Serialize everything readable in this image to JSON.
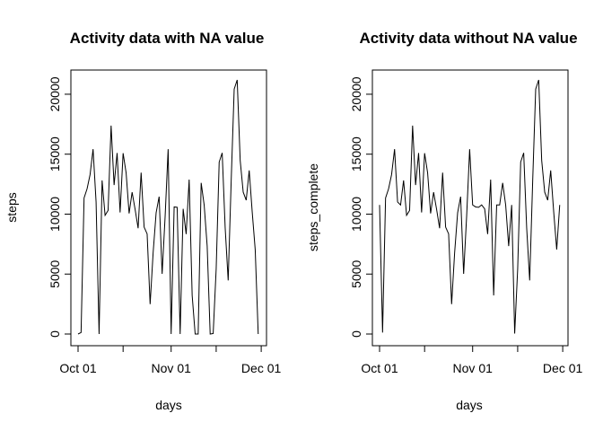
{
  "chart_data": [
    {
      "type": "line",
      "title": "Activity data with NA value",
      "xlabel": "days",
      "ylabel": "steps",
      "x_tick_labels": [
        "Oct 01",
        "Nov 01",
        "Dec 01"
      ],
      "y_tick_labels": [
        "0",
        "5000",
        "10000",
        "15000",
        "20000"
      ],
      "y_ticks": [
        0,
        5000,
        10000,
        15000,
        20000
      ],
      "ylim": [
        0,
        21194
      ],
      "grid": false,
      "series": [
        {
          "values": [
            0,
            126,
            11352,
            12116,
            13294,
            15420,
            11015,
            0,
            12811,
            9900,
            10304,
            17382,
            12426,
            15098,
            10139,
            15084,
            13452,
            10056,
            11829,
            10395,
            8821,
            13460,
            8918,
            8355,
            2492,
            6778,
            10119,
            11458,
            5018,
            9819,
            15414,
            0,
            10600,
            10571,
            0,
            10439,
            8334,
            12883,
            3219,
            0,
            0,
            12608,
            10765,
            7336,
            0,
            41,
            5441,
            14339,
            15110,
            8841,
            4472,
            12787,
            20427,
            21194,
            14478,
            11834,
            11162,
            13646,
            10183,
            7047,
            0
          ]
        }
      ]
    },
    {
      "type": "line",
      "title": "Activity data without NA value",
      "xlabel": "days",
      "ylabel": "steps_complete",
      "x_tick_labels": [
        "Oct 01",
        "Nov 01",
        "Dec 01"
      ],
      "y_tick_labels": [
        "0",
        "5000",
        "10000",
        "15000",
        "20000"
      ],
      "y_ticks": [
        0,
        5000,
        10000,
        15000,
        20000
      ],
      "ylim": [
        41,
        21194
      ],
      "grid": false,
      "series": [
        {
          "values": [
            10766,
            126,
            11352,
            12116,
            13294,
            15420,
            11015,
            10766,
            12811,
            9900,
            10304,
            17382,
            12426,
            15098,
            10139,
            15084,
            13452,
            10056,
            11829,
            10395,
            8821,
            13460,
            8918,
            8355,
            2492,
            6778,
            10119,
            11458,
            5018,
            9819,
            15414,
            10766,
            10600,
            10571,
            10766,
            10439,
            8334,
            12883,
            3219,
            10766,
            10766,
            12608,
            10765,
            7336,
            10766,
            41,
            5441,
            14339,
            15110,
            8841,
            4472,
            12787,
            20427,
            21194,
            14478,
            11834,
            11162,
            13646,
            10183,
            7047,
            10766
          ]
        }
      ]
    }
  ]
}
